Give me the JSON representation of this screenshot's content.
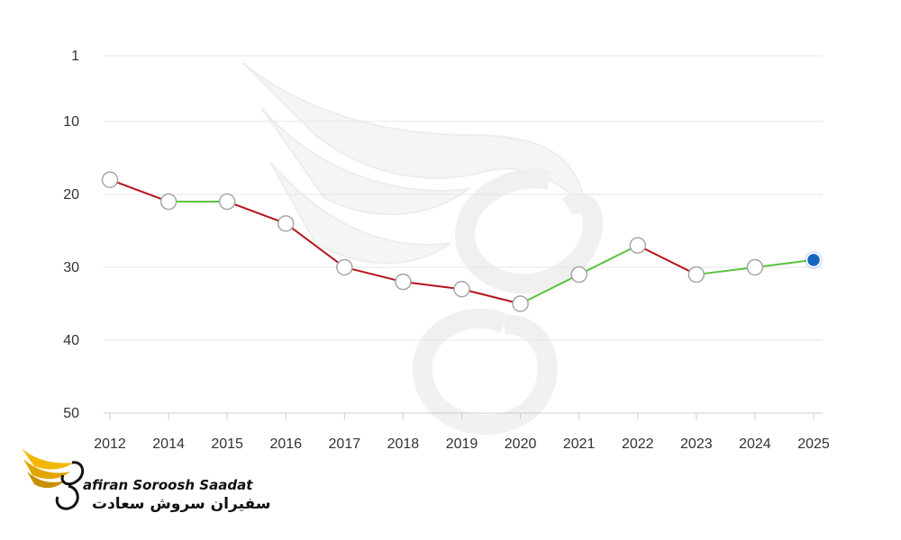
{
  "chart_data": {
    "type": "line",
    "categories": [
      "2012",
      "2014",
      "2015",
      "2016",
      "2017",
      "2018",
      "2019",
      "2020",
      "2021",
      "2022",
      "2023",
      "2024",
      "2025"
    ],
    "series": [
      {
        "values": [
          18,
          21,
          21,
          24,
          30,
          32,
          33,
          35,
          31,
          27,
          31,
          30,
          29
        ]
      }
    ],
    "y_ticks": [
      "1",
      "10",
      "20",
      "30",
      "40",
      "50"
    ],
    "ylim": [
      50,
      1
    ],
    "y_axis_inverted": true,
    "grid": true,
    "colors": {
      "decline": "#b5121b",
      "improve": "#5cc13f",
      "marker_fill": "#ffffff",
      "marker_stroke": "#a6a6a6",
      "current_marker": "#1565c0",
      "grid": "#e6e6e6",
      "logo_gold": "#f2b705"
    }
  },
  "logo": {
    "name_en_rest": "afiran Soroosh Saadat",
    "name_fa": "سفیران سروش سعادت"
  }
}
